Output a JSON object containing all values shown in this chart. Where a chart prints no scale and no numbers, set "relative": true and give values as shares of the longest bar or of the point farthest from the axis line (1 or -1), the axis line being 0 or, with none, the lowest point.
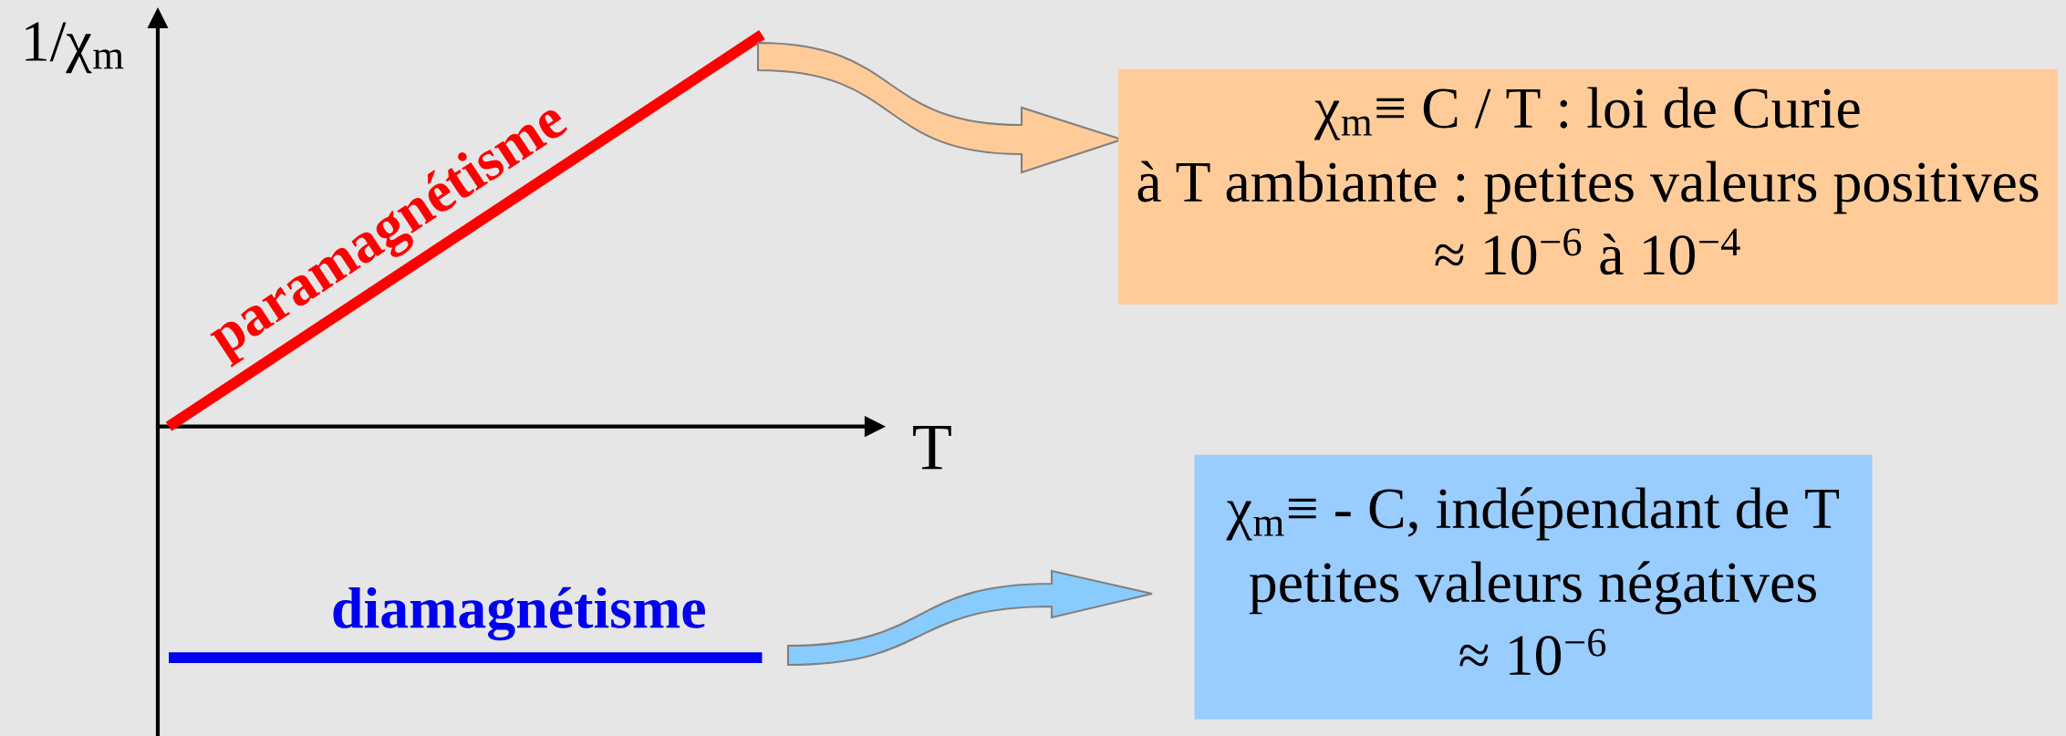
{
  "chart_data": {
    "type": "line",
    "relative": true,
    "ylabel": "1/χ$_{m}$",
    "xlabel": "T",
    "categories": [
      null,
      null
    ],
    "series": [
      {
        "name": "paramagnétisme",
        "color": "#ff0000",
        "values": [
          0,
          1
        ]
      },
      {
        "name": "diamagnétisme",
        "color": "#0000ee",
        "values": [
          -0.59,
          -0.59
        ]
      }
    ],
    "annotations": [
      "χ$_{m}$≡ C / T : loi de Curie\nà T ambiante : petites valeurs positives\n≈ 10$^{−6}$ à 10$^{−4}$",
      "χ$_{m}$≡ - C, indépendant de T\npetites valeurs négatives\n≈ 10$^{−6}$"
    ]
  }
}
